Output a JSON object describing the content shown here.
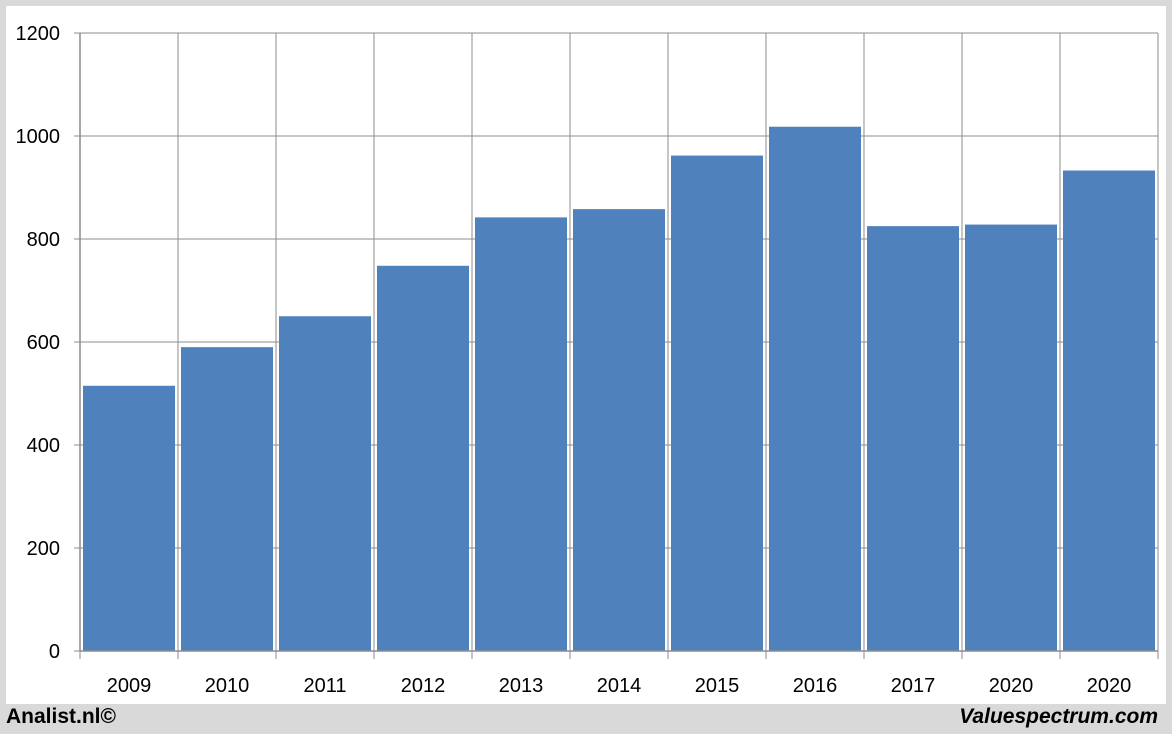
{
  "chart_data": {
    "type": "bar",
    "categories": [
      "2009",
      "2010",
      "2011",
      "2012",
      "2013",
      "2014",
      "2015",
      "2016",
      "2017",
      "2020",
      "2020"
    ],
    "values": [
      515,
      590,
      650,
      748,
      842,
      858,
      962,
      1018,
      825,
      828,
      933
    ],
    "ylim": [
      0,
      1200
    ],
    "yticks": [
      0,
      200,
      400,
      600,
      800,
      1000,
      1200
    ],
    "grid": true,
    "bar_color": "#4f81bd",
    "title": "",
    "xlabel": "",
    "ylabel": ""
  },
  "footer": {
    "left_credit": "Analist.nl©",
    "right_credit": "Valuespectrum.com"
  }
}
